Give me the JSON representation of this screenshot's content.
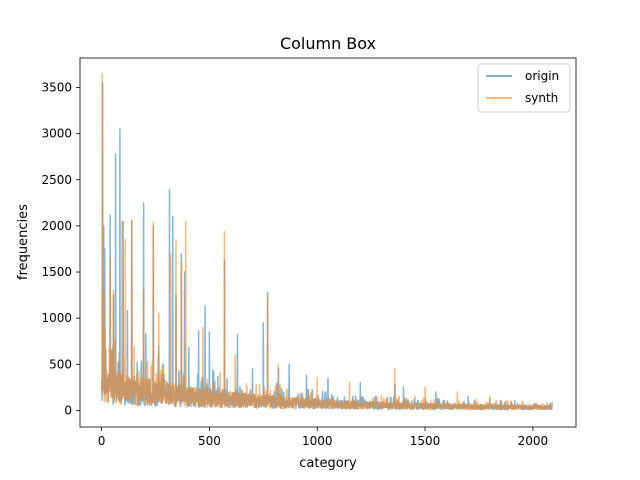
{
  "chart_data": {
    "type": "line",
    "title": "Column Box",
    "xlabel": "category",
    "ylabel": "frequencies",
    "xlim": [
      -100,
      2200
    ],
    "ylim": [
      -180,
      3820
    ],
    "xticks": [
      0,
      500,
      1000,
      1500,
      2000
    ],
    "yticks": [
      0,
      500,
      1000,
      1500,
      2000,
      2500,
      3000,
      3500
    ],
    "grid": false,
    "legend": "top-right",
    "x_count": 2090,
    "series": [
      {
        "name": "origin",
        "color": "#1f77b4",
        "alpha": 0.55,
        "peaks": [
          [
            5,
            3550
          ],
          [
            10,
            2000
          ],
          [
            15,
            1750
          ],
          [
            20,
            650
          ],
          [
            40,
            2120
          ],
          [
            55,
            1250
          ],
          [
            65,
            2780
          ],
          [
            85,
            3050
          ],
          [
            100,
            2050
          ],
          [
            120,
            1080
          ],
          [
            140,
            2060
          ],
          [
            195,
            2250
          ],
          [
            205,
            830
          ],
          [
            240,
            2000
          ],
          [
            265,
            700
          ],
          [
            315,
            2390
          ],
          [
            330,
            2100
          ],
          [
            345,
            1250
          ],
          [
            370,
            1700
          ],
          [
            385,
            1500
          ],
          [
            405,
            680
          ],
          [
            450,
            860
          ],
          [
            480,
            1130
          ],
          [
            500,
            850
          ],
          [
            520,
            420
          ],
          [
            570,
            1630
          ],
          [
            630,
            820
          ],
          [
            700,
            450
          ],
          [
            750,
            950
          ],
          [
            770,
            1280
          ],
          [
            820,
            450
          ],
          [
            870,
            500
          ],
          [
            950,
            380
          ],
          [
            1050,
            350
          ],
          [
            1200,
            300
          ],
          [
            1360,
            280
          ],
          [
            1400,
            250
          ],
          [
            1550,
            200
          ],
          [
            1700,
            150
          ],
          [
            1800,
            120
          ],
          [
            1900,
            90
          ],
          [
            2000,
            60
          ],
          [
            2080,
            30
          ]
        ]
      },
      {
        "name": "synth",
        "color": "#ff7f0e",
        "alpha": 0.55,
        "peaks": [
          [
            3,
            3650
          ],
          [
            10,
            1300
          ],
          [
            40,
            1650
          ],
          [
            55,
            1300
          ],
          [
            95,
            2050
          ],
          [
            110,
            1850
          ],
          [
            140,
            2060
          ],
          [
            195,
            1300
          ],
          [
            240,
            2030
          ],
          [
            265,
            1050
          ],
          [
            320,
            1700
          ],
          [
            345,
            1850
          ],
          [
            370,
            1600
          ],
          [
            390,
            2050
          ],
          [
            470,
            900
          ],
          [
            570,
            1940
          ],
          [
            620,
            600
          ],
          [
            770,
            1240
          ],
          [
            820,
            500
          ],
          [
            1000,
            350
          ],
          [
            1150,
            300
          ],
          [
            1360,
            450
          ],
          [
            1500,
            250
          ],
          [
            1650,
            200
          ],
          [
            1800,
            150
          ],
          [
            1950,
            100
          ],
          [
            2080,
            40
          ]
        ]
      }
    ]
  }
}
